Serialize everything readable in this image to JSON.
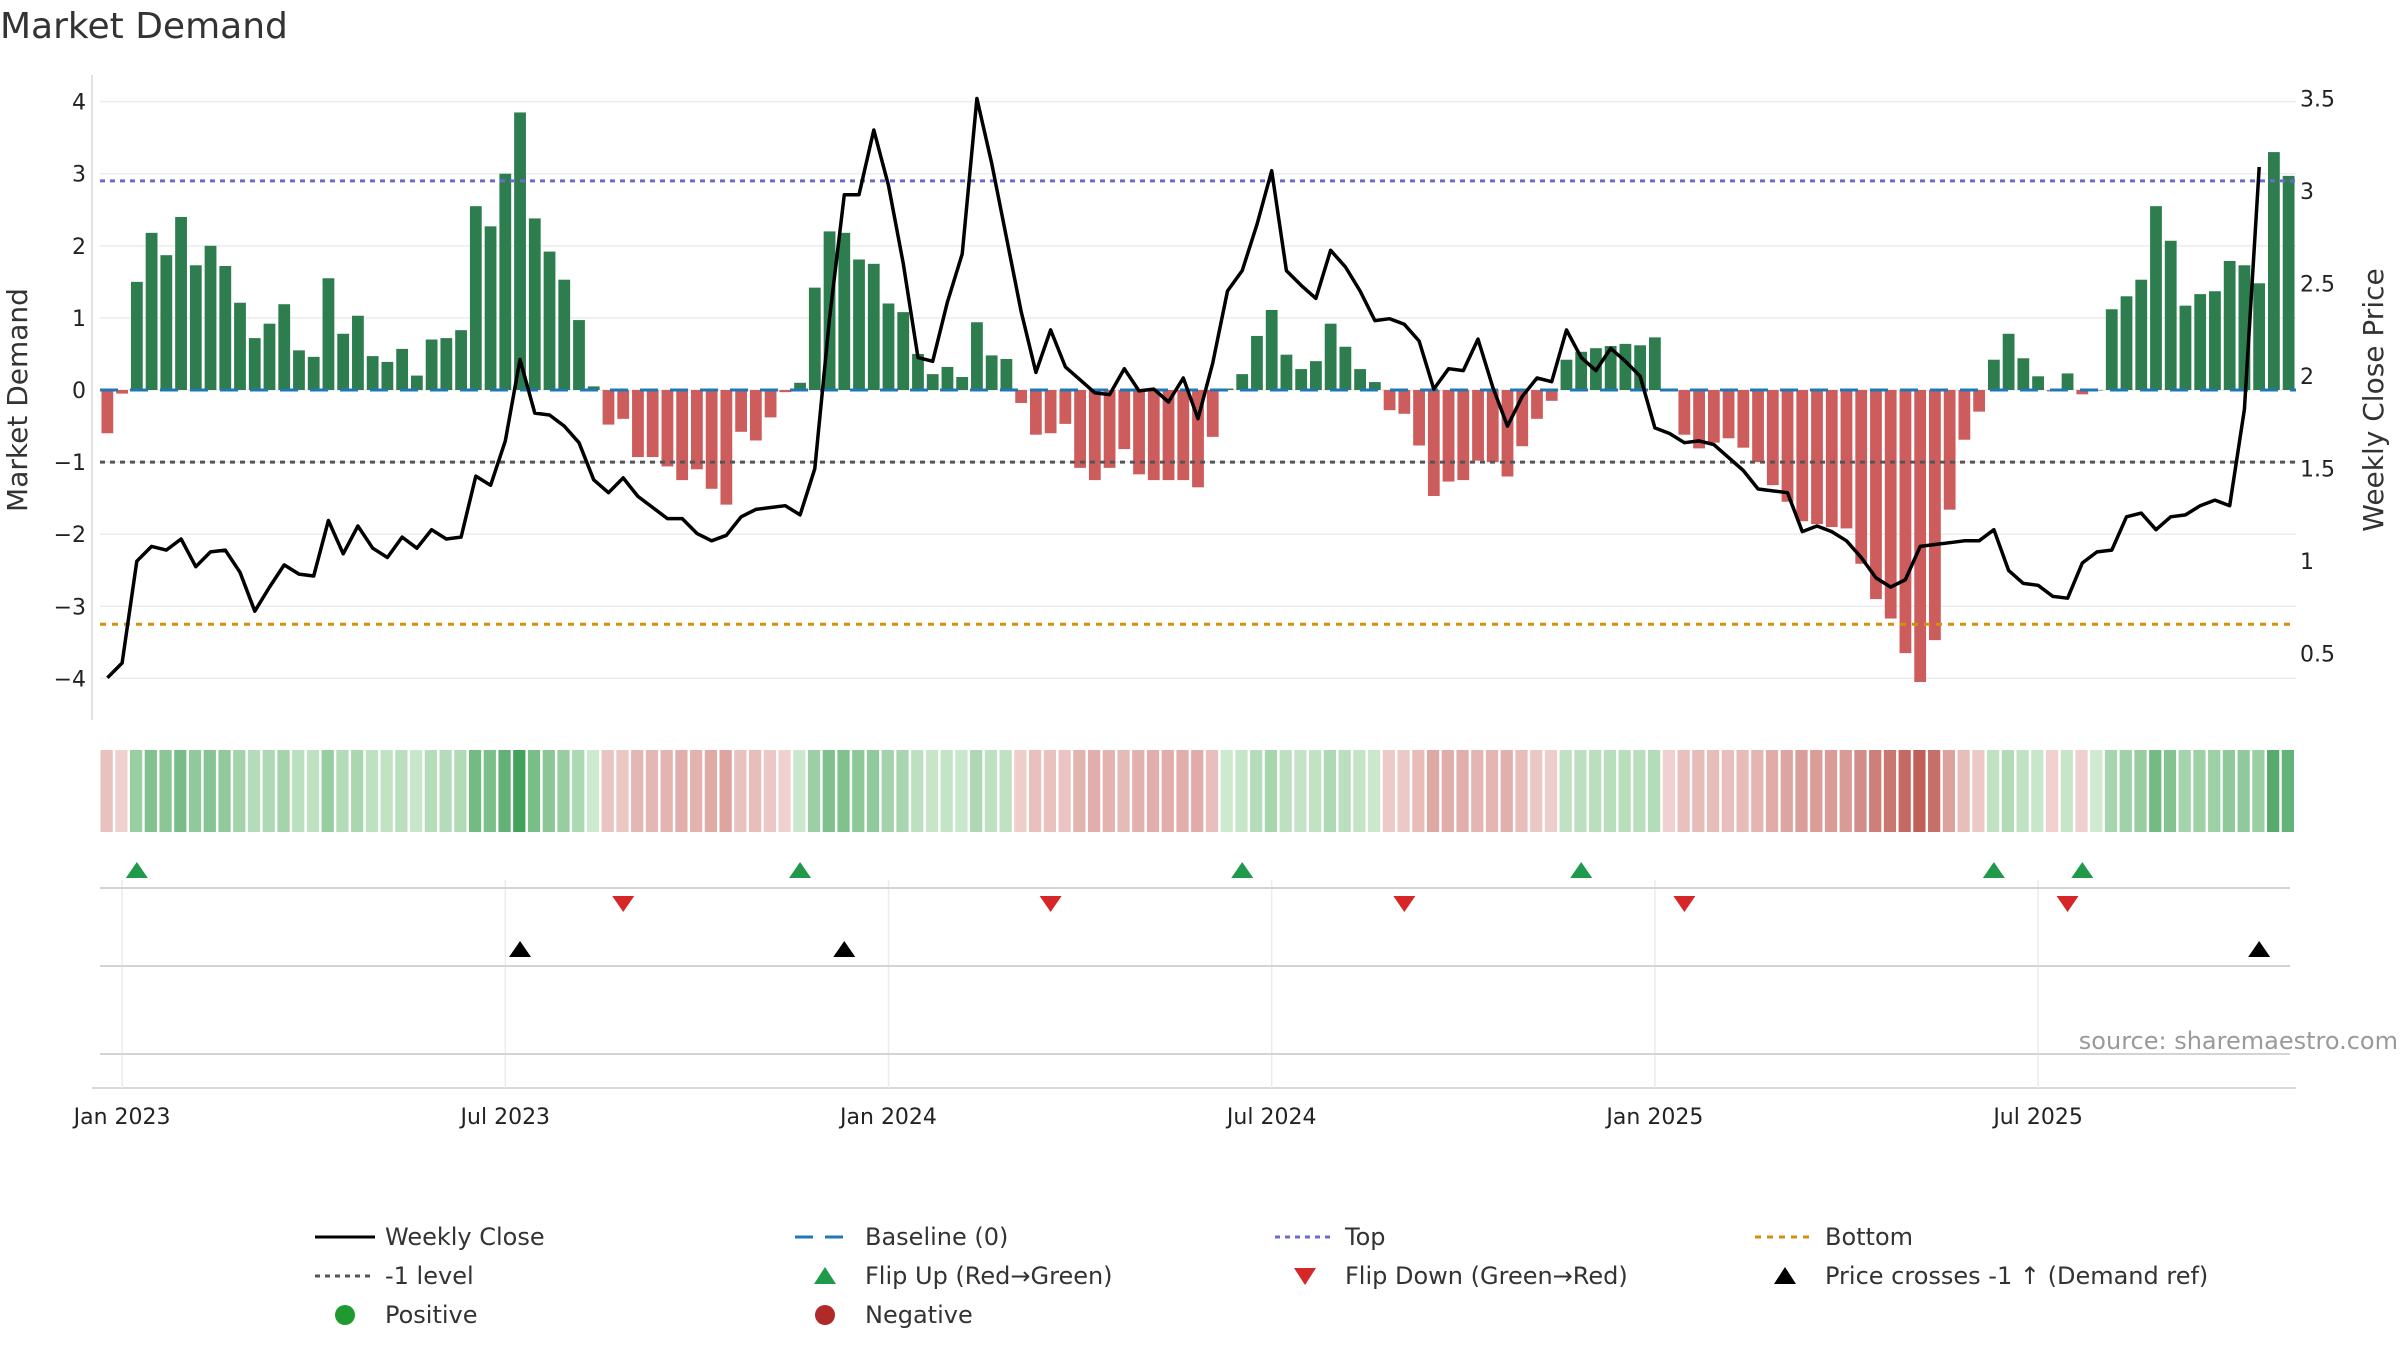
{
  "chart_data": {
    "type": "bar",
    "title": "Market Demand",
    "ylabel": "Market Demand",
    "y2label": "Weekly Close Price",
    "ylim": [
      -4.3,
      4.3
    ],
    "y2lim": [
      0.25,
      3.6
    ],
    "yticks": [
      "4",
      "3",
      "2",
      "1",
      "0",
      "−1",
      "−2",
      "−3",
      "−4"
    ],
    "y2ticks": [
      "3.5",
      "3",
      "2.5",
      "2",
      "1.5",
      "1",
      "0.5"
    ],
    "xticks": [
      "Jan 2023",
      "Jul 2023",
      "Jan 2024",
      "Jul 2024",
      "Jan 2025",
      "Jul 2025"
    ],
    "top_level": 2.9,
    "bottom_level": -3.25,
    "minus_one_level": -1.0,
    "colors": {
      "positive": "#2e7d4f",
      "negative": "#cd5c5c",
      "close": "#000000",
      "top": "#6a6ad0",
      "bottom": "#d4900a",
      "minus_one": "#555555",
      "baseline": "#1f77b4",
      "flip_up": "#1f9a4a",
      "flip_down": "#d62728",
      "cross": "#000000"
    },
    "series": [
      {
        "name": "Market Demand",
        "values": [
          -0.6,
          -0.05,
          1.5,
          2.18,
          1.87,
          2.4,
          1.73,
          2.0,
          1.72,
          1.21,
          0.72,
          0.92,
          1.19,
          0.55,
          0.46,
          1.55,
          0.78,
          1.03,
          0.47,
          0.39,
          0.57,
          0.2,
          0.7,
          0.72,
          0.83,
          2.55,
          2.27,
          3.0,
          3.85,
          2.38,
          1.92,
          1.53,
          0.97,
          0.05,
          -0.48,
          -0.4,
          -0.93,
          -0.93,
          -1.06,
          -1.25,
          -1.1,
          -1.37,
          -1.59,
          -0.58,
          -0.7,
          -0.38,
          -0.03,
          0.1,
          1.42,
          2.2,
          2.18,
          1.81,
          1.75,
          1.2,
          1.08,
          0.5,
          0.22,
          0.32,
          0.18,
          0.94,
          0.48,
          0.43,
          -0.18,
          -0.62,
          -0.6,
          -0.47,
          -1.08,
          -1.25,
          -1.08,
          -0.82,
          -1.17,
          -1.25,
          -1.25,
          -1.25,
          -1.35,
          -0.65,
          0.02,
          0.22,
          0.75,
          1.11,
          0.49,
          0.29,
          0.4,
          0.92,
          0.6,
          0.29,
          0.11,
          -0.28,
          -0.33,
          -0.77,
          -1.47,
          -1.27,
          -1.25,
          -0.98,
          -1.0,
          -1.2,
          -0.78,
          -0.4,
          -0.15,
          0.42,
          0.53,
          0.58,
          0.61,
          0.64,
          0.62,
          0.73,
          -0.02,
          -0.62,
          -0.81,
          -0.73,
          -0.67,
          -0.8,
          -1.0,
          -1.32,
          -1.55,
          -1.82,
          -1.86,
          -1.9,
          -1.92,
          -2.41,
          -2.9,
          -3.17,
          -3.65,
          -4.05,
          -3.47,
          -1.66,
          -0.69,
          -0.3,
          0.42,
          0.78,
          0.44,
          0.19,
          -0.02,
          0.23,
          -0.06,
          0.0,
          1.12,
          1.3,
          1.53,
          2.55,
          2.07,
          1.17,
          1.33,
          1.37,
          1.79,
          1.73,
          1.48,
          3.3,
          2.97
        ]
      },
      {
        "name": "Weekly Close",
        "values": [
          0.37,
          0.45,
          1.0,
          1.08,
          1.06,
          1.12,
          0.97,
          1.05,
          1.06,
          0.94,
          0.73,
          0.86,
          0.98,
          0.93,
          0.92,
          1.22,
          1.04,
          1.19,
          1.07,
          1.02,
          1.13,
          1.07,
          1.17,
          1.12,
          1.13,
          1.46,
          1.41,
          1.65,
          2.09,
          1.8,
          1.79,
          1.73,
          1.64,
          1.44,
          1.37,
          1.45,
          1.35,
          1.29,
          1.23,
          1.23,
          1.15,
          1.11,
          1.14,
          1.24,
          1.28,
          1.29,
          1.3,
          1.25,
          1.5,
          2.31,
          2.98,
          2.98,
          3.33,
          3.03,
          2.61,
          2.1,
          2.08,
          2.4,
          2.66,
          3.5,
          3.15,
          2.75,
          2.35,
          2.02,
          2.25,
          2.05,
          1.98,
          1.91,
          1.9,
          2.04,
          1.92,
          1.93,
          1.86,
          1.99,
          1.77,
          2.07,
          2.46,
          2.57,
          2.82,
          3.11,
          2.57,
          2.49,
          2.42,
          2.68,
          2.59,
          2.46,
          2.3,
          2.31,
          2.28,
          2.19,
          1.93,
          2.04,
          2.03,
          2.2,
          1.94,
          1.73,
          1.89,
          1.99,
          1.97,
          2.25,
          2.1,
          2.03,
          2.15,
          2.08,
          2.0,
          1.72,
          1.69,
          1.64,
          1.65,
          1.63,
          1.56,
          1.49,
          1.39,
          1.38,
          1.37,
          1.16,
          1.19,
          1.16,
          1.11,
          1.02,
          0.91,
          0.86,
          0.9,
          1.08,
          1.09,
          1.1,
          1.11,
          1.11,
          1.17,
          0.95,
          0.88,
          0.87,
          0.81,
          0.8,
          0.99,
          1.05,
          1.06,
          1.24,
          1.26,
          1.17,
          1.24,
          1.25,
          1.3,
          1.33,
          1.3,
          1.82,
          3.13
        ]
      }
    ],
    "flip_up_weeks": [
      2,
      47,
      77,
      100,
      128,
      134
    ],
    "flip_down_weeks": [
      35,
      64,
      88,
      107,
      133
    ],
    "price_cross_weeks": [
      28,
      50,
      146
    ],
    "legend": [
      {
        "key": "close",
        "label": "Weekly Close"
      },
      {
        "key": "baseline",
        "label": "Baseline (0)"
      },
      {
        "key": "top",
        "label": "Top"
      },
      {
        "key": "bottom",
        "label": "Bottom"
      },
      {
        "key": "minus_one",
        "label": "-1 level"
      },
      {
        "key": "flip_up",
        "label": "Flip Up (Red→Green)"
      },
      {
        "key": "flip_down",
        "label": "Flip Down (Green→Red)"
      },
      {
        "key": "cross",
        "label": "Price crosses -1 ↑ (Demand ref)"
      },
      {
        "key": "positive",
        "label": "Positive"
      },
      {
        "key": "negative",
        "label": "Negative"
      }
    ],
    "source": "source: sharemaestro.com"
  }
}
